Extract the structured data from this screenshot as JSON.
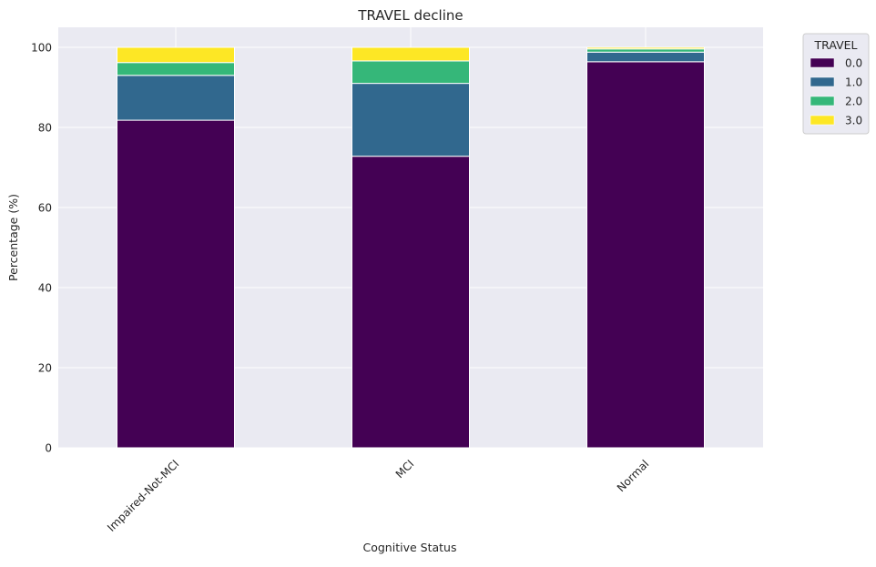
{
  "chart_data": {
    "type": "bar",
    "stacked": true,
    "title": "TRAVEL decline",
    "xlabel": "Cognitive Status",
    "ylabel": "Percentage (%)",
    "categories": [
      "Impaired-Not-MCI",
      "MCI",
      "Normal"
    ],
    "ylim": [
      0,
      105
    ],
    "yticks": [
      0,
      20,
      40,
      60,
      80,
      100
    ],
    "grid": true,
    "legend_title": "TRAVEL",
    "legend_position": "upper right, outside plot",
    "series": [
      {
        "name": "0.0",
        "color": "#440154",
        "values": [
          81.8,
          72.8,
          96.4
        ]
      },
      {
        "name": "1.0",
        "color": "#31688e",
        "values": [
          11.2,
          18.2,
          2.4
        ]
      },
      {
        "name": "2.0",
        "color": "#35b779",
        "values": [
          3.2,
          5.6,
          0.8
        ]
      },
      {
        "name": "3.0",
        "color": "#fde725",
        "values": [
          3.8,
          3.4,
          0.4
        ]
      }
    ]
  }
}
